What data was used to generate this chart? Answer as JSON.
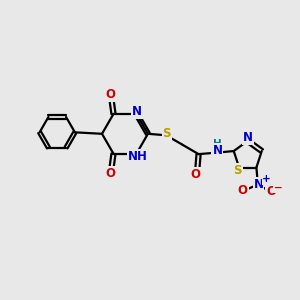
{
  "bg_color": "#e8e8e8",
  "bond_color": "#000000",
  "bond_lw": 1.6,
  "atom_colors": {
    "C": "#000000",
    "N": "#0000cc",
    "O": "#cc0000",
    "S": "#b8a000",
    "H": "#008080",
    "plus": "#0000cc",
    "minus": "#cc0000"
  },
  "font_size": 8.5,
  "font_size_small": 7.5
}
